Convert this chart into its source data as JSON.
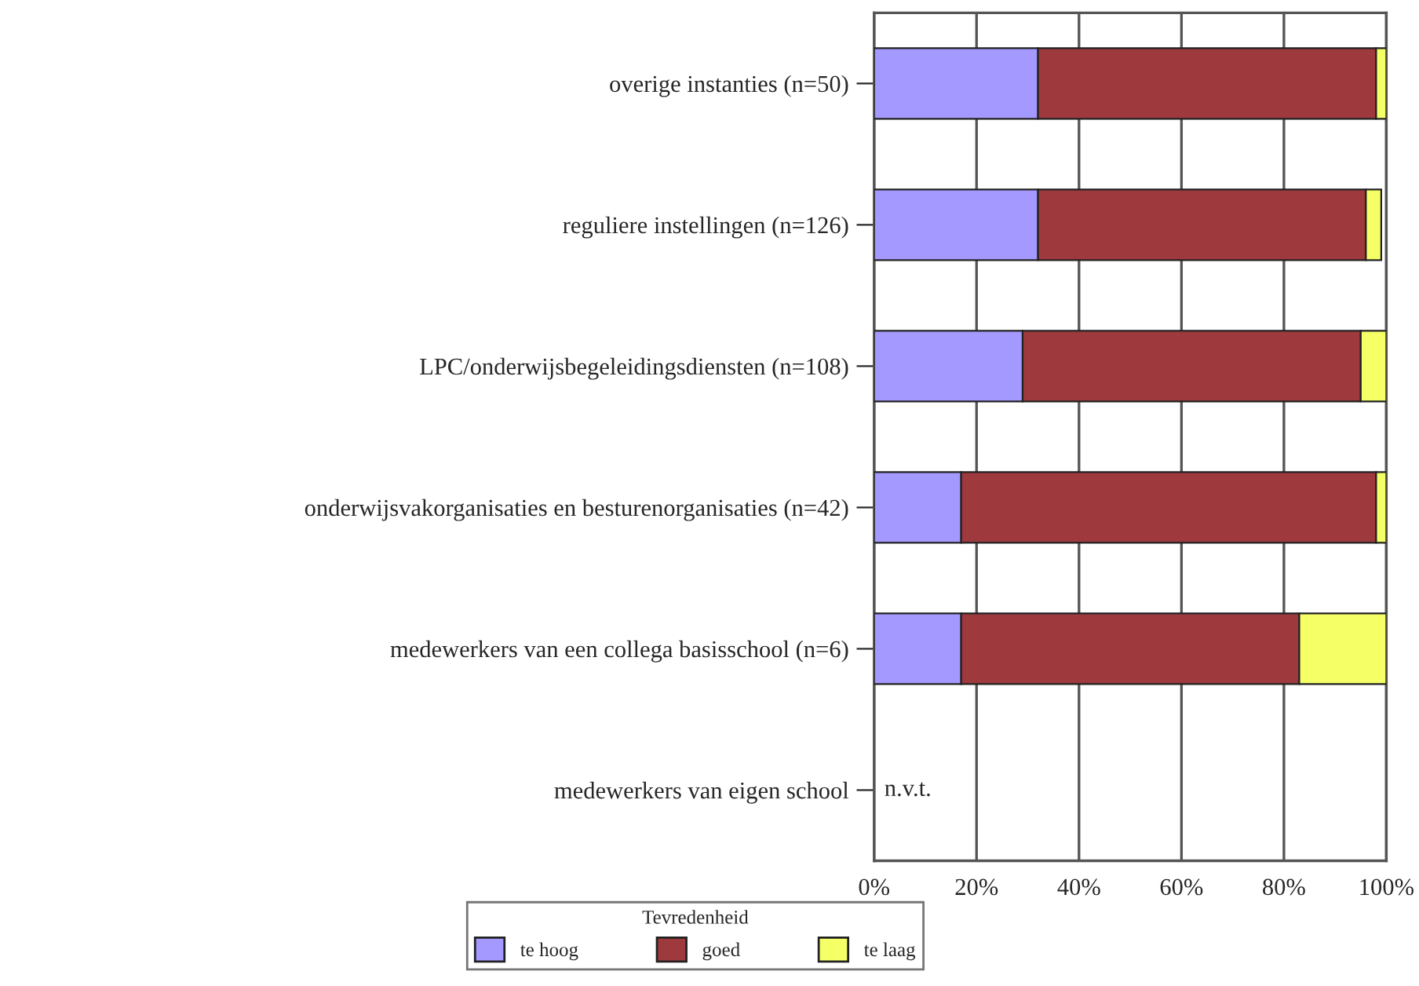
{
  "chart_data": {
    "type": "bar",
    "orientation": "horizontal",
    "stacked": true,
    "categories": [
      "overige instanties (n=50)",
      "reguliere instellingen (n=126)",
      "LPC/onderwijsbegeleidingsdiensten (n=108)",
      "onderwijsvakorganisaties en besturenorganisaties (n=42)",
      "medewerkers van een collega basisschool (n=6)",
      "medewerkers van eigen school"
    ],
    "series": [
      {
        "name": "te hoog",
        "color": "#a499ff",
        "values": [
          32,
          32,
          29,
          17,
          17,
          null
        ]
      },
      {
        "name": "goed",
        "color": "#9e3a3e",
        "values": [
          66,
          64,
          66,
          81,
          66,
          null
        ]
      },
      {
        "name": "te laag",
        "color": "#f5ff66",
        "values": [
          2,
          3,
          5,
          2,
          17,
          null
        ]
      }
    ],
    "xlim": [
      0,
      100
    ],
    "xticks": [
      {
        "value": 0,
        "label": "0%"
      },
      {
        "value": 20,
        "label": "20%"
      },
      {
        "value": 40,
        "label": "40%"
      },
      {
        "value": 60,
        "label": "60%"
      },
      {
        "value": 80,
        "label": "80%"
      },
      {
        "value": 100,
        "label": "100%"
      }
    ],
    "legend_title": "Tevredenheid",
    "legend": "bottom",
    "grid": "x",
    "annotations": [
      "n.v.t."
    ]
  }
}
